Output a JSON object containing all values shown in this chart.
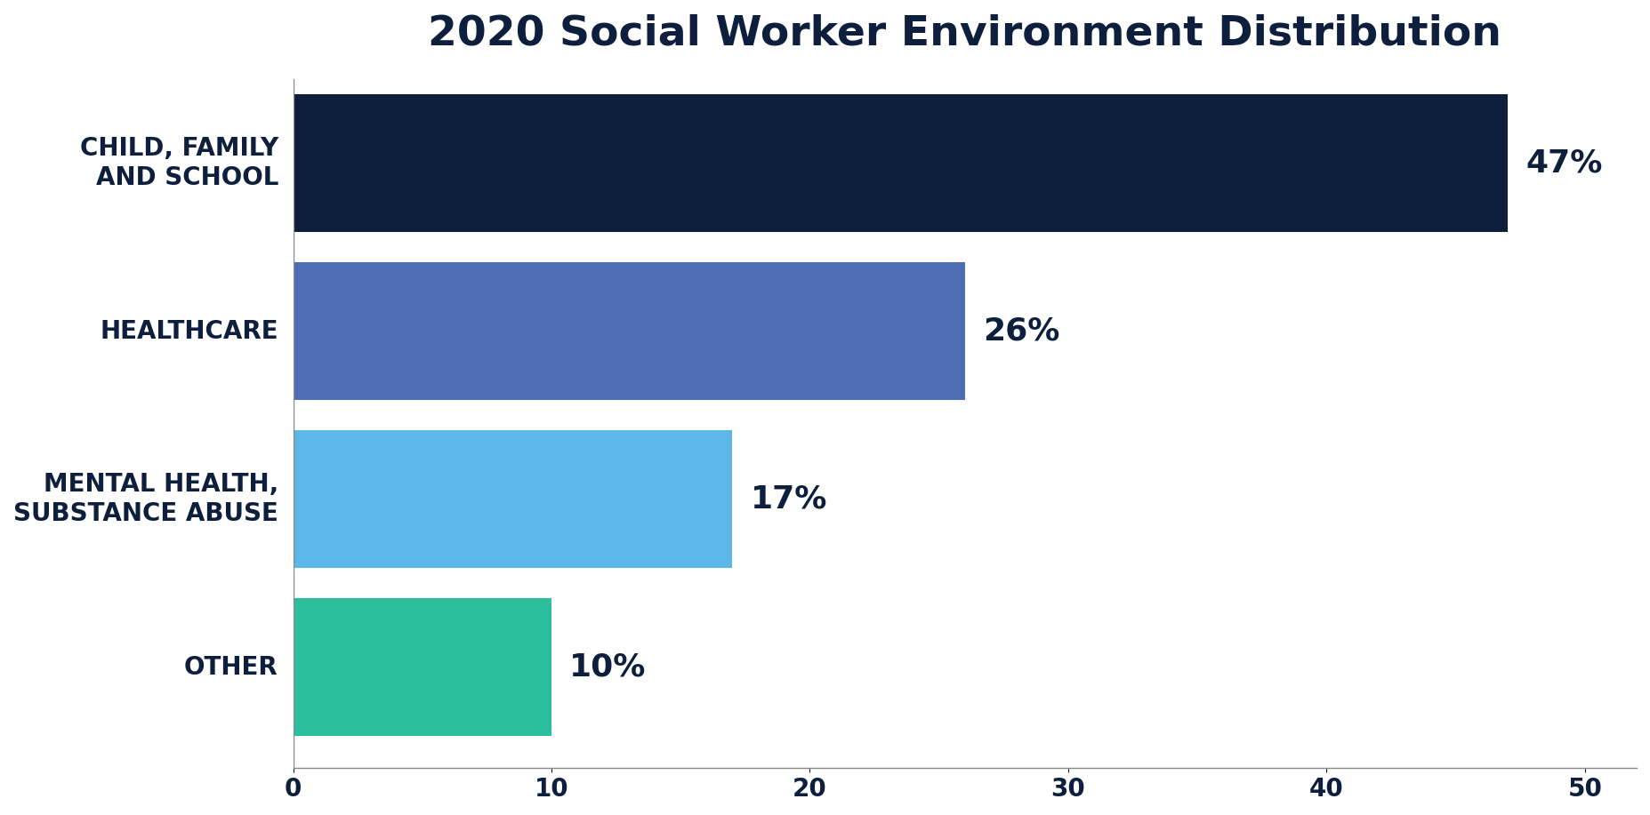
{
  "title": "2020 Social Worker Environment Distribution",
  "categories": [
    "CHILD, FAMILY\nAND SCHOOL",
    "HEALTHCARE",
    "MENTAL HEALTH,\nSUBSTANCE ABUSE",
    "OTHER"
  ],
  "values": [
    47,
    26,
    17,
    10
  ],
  "labels": [
    "47%",
    "26%",
    "17%",
    "10%"
  ],
  "bar_colors": [
    "#0d1f3c",
    "#4e6db5",
    "#5bb8e8",
    "#2bbf9e"
  ],
  "title_color": "#0d1f3c",
  "label_color": "#0d1f3c",
  "tick_label_color": "#0d1f3c",
  "background_color": "#ffffff",
  "xlim": [
    0,
    52
  ],
  "xticks": [
    0,
    10,
    20,
    30,
    40,
    50
  ],
  "title_fontsize": 34,
  "label_fontsize": 26,
  "tick_fontsize": 20,
  "ytick_fontsize": 20,
  "bar_height": 0.82
}
